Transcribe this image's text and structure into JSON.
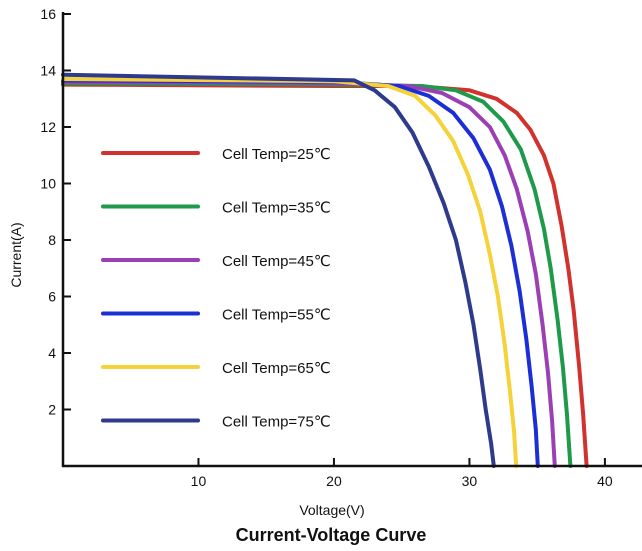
{
  "chart_data": {
    "type": "line",
    "title": "Current-Voltage Curve",
    "xlabel": "Voltage(V)",
    "ylabel": "Current(A)",
    "xlim": [
      0,
      42
    ],
    "ylim": [
      0,
      16
    ],
    "xticks": [
      10,
      20,
      30,
      40
    ],
    "yticks": [
      2,
      4,
      6,
      8,
      10,
      12,
      14,
      16
    ],
    "grid": false,
    "legend_position": "left",
    "series": [
      {
        "name": "Cell Temp=25℃",
        "color": "#d2322d",
        "points": [
          [
            0,
            13.5
          ],
          [
            20,
            13.45
          ],
          [
            26,
            13.45
          ],
          [
            30,
            13.3
          ],
          [
            32,
            13.0
          ],
          [
            33.5,
            12.5
          ],
          [
            34.5,
            11.9
          ],
          [
            35.5,
            11.0
          ],
          [
            36.2,
            10.0
          ],
          [
            36.8,
            8.5
          ],
          [
            37.3,
            7.0
          ],
          [
            37.7,
            5.5
          ],
          [
            38.1,
            3.5
          ],
          [
            38.4,
            1.8
          ],
          [
            38.65,
            0
          ]
        ]
      },
      {
        "name": "Cell Temp=35℃",
        "color": "#1f9a4a",
        "points": [
          [
            0,
            13.55
          ],
          [
            20,
            13.5
          ],
          [
            26.5,
            13.45
          ],
          [
            29,
            13.3
          ],
          [
            31,
            12.9
          ],
          [
            32.5,
            12.2
          ],
          [
            33.8,
            11.2
          ],
          [
            34.8,
            9.8
          ],
          [
            35.5,
            8.4
          ],
          [
            36.0,
            7.0
          ],
          [
            36.5,
            5.2
          ],
          [
            36.9,
            3.5
          ],
          [
            37.2,
            1.8
          ],
          [
            37.45,
            0
          ]
        ]
      },
      {
        "name": "Cell Temp=45℃",
        "color": "#9b3fb5",
        "points": [
          [
            0,
            13.6
          ],
          [
            20,
            13.55
          ],
          [
            25.5,
            13.45
          ],
          [
            28,
            13.2
          ],
          [
            30,
            12.7
          ],
          [
            31.5,
            12.0
          ],
          [
            32.6,
            11.0
          ],
          [
            33.5,
            9.8
          ],
          [
            34.3,
            8.3
          ],
          [
            34.9,
            6.8
          ],
          [
            35.4,
            5.0
          ],
          [
            35.8,
            3.3
          ],
          [
            36.1,
            1.6
          ],
          [
            36.3,
            0
          ]
        ]
      },
      {
        "name": "Cell Temp=55℃",
        "color": "#1c2fd6",
        "points": [
          [
            0,
            13.65
          ],
          [
            20,
            13.6
          ],
          [
            24.8,
            13.45
          ],
          [
            27,
            13.1
          ],
          [
            28.8,
            12.5
          ],
          [
            30.3,
            11.6
          ],
          [
            31.5,
            10.5
          ],
          [
            32.4,
            9.2
          ],
          [
            33.1,
            7.8
          ],
          [
            33.7,
            6.2
          ],
          [
            34.2,
            4.5
          ],
          [
            34.6,
            2.8
          ],
          [
            34.9,
            1.3
          ],
          [
            35.05,
            0
          ]
        ]
      },
      {
        "name": "Cell Temp=65℃",
        "color": "#f5d23a",
        "points": [
          [
            0,
            13.7
          ],
          [
            20,
            13.62
          ],
          [
            24,
            13.45
          ],
          [
            26,
            13.1
          ],
          [
            27.5,
            12.4
          ],
          [
            28.8,
            11.5
          ],
          [
            29.9,
            10.3
          ],
          [
            30.8,
            9.0
          ],
          [
            31.5,
            7.5
          ],
          [
            32.1,
            6.0
          ],
          [
            32.6,
            4.3
          ],
          [
            33.0,
            2.6
          ],
          [
            33.3,
            1.2
          ],
          [
            33.45,
            0
          ]
        ]
      },
      {
        "name": "Cell Temp=75℃",
        "color": "#2e3a8c",
        "points": [
          [
            0,
            13.85
          ],
          [
            21.5,
            13.65
          ],
          [
            23,
            13.3
          ],
          [
            24.5,
            12.7
          ],
          [
            25.8,
            11.8
          ],
          [
            27,
            10.6
          ],
          [
            28.1,
            9.3
          ],
          [
            29,
            8.0
          ],
          [
            29.7,
            6.5
          ],
          [
            30.3,
            5.0
          ],
          [
            30.8,
            3.4
          ],
          [
            31.2,
            2.0
          ],
          [
            31.6,
            0.8
          ],
          [
            31.8,
            0
          ]
        ]
      }
    ]
  }
}
